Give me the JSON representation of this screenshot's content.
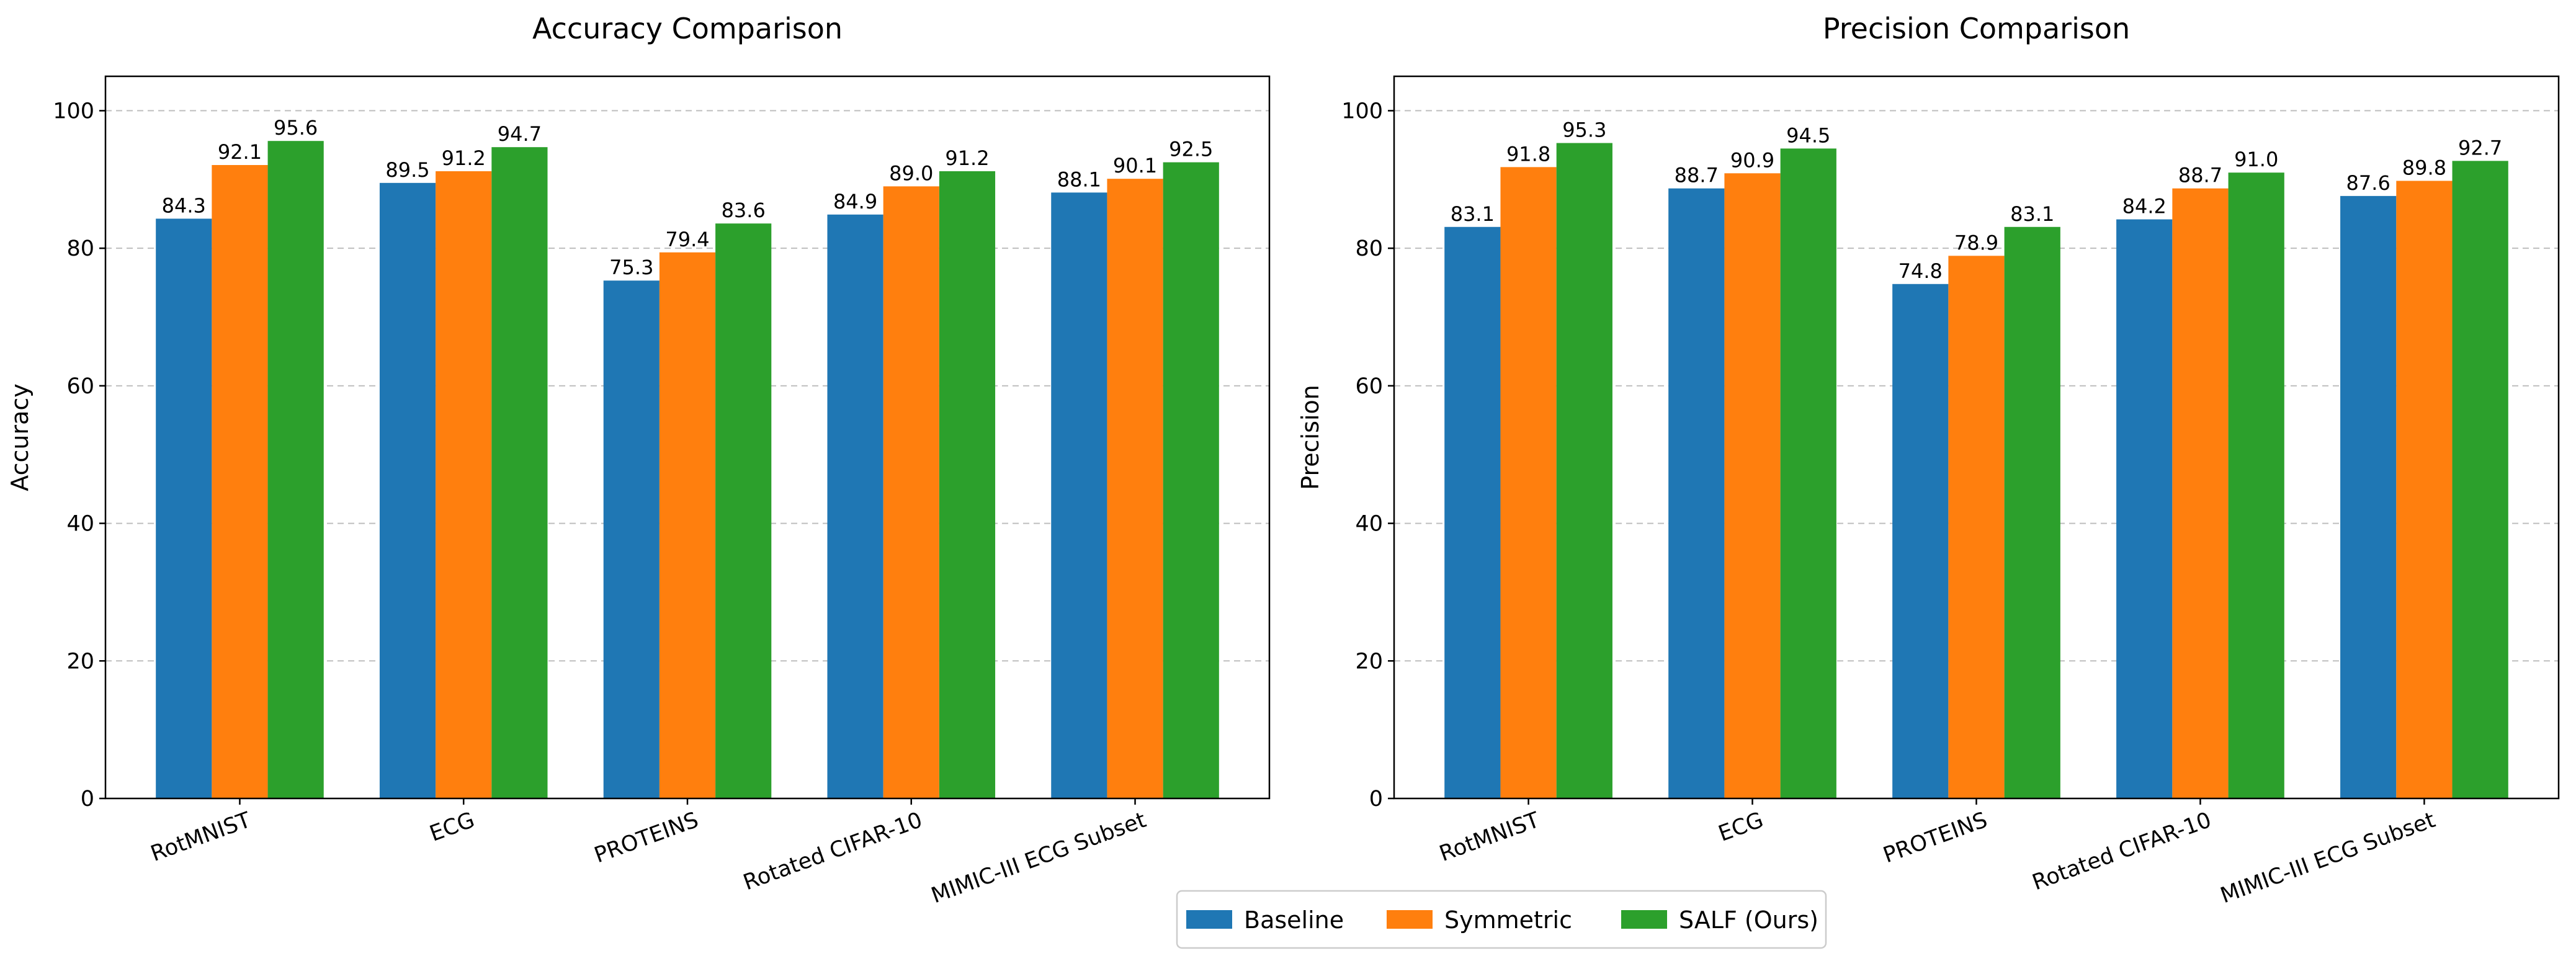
{
  "chart_data": [
    {
      "type": "bar",
      "title": "Accuracy Comparison",
      "xlabel": "",
      "ylabel": "Accuracy",
      "ylim": [
        0,
        105
      ],
      "yticks": [
        0,
        20,
        40,
        60,
        80,
        100
      ],
      "grid": "y-dashed",
      "categories": [
        "RotMNIST",
        "ECG",
        "PROTEINS",
        "Rotated CIFAR-10",
        "MIMIC-III ECG Subset"
      ],
      "series": [
        {
          "name": "Baseline",
          "color": "#1f77b4",
          "values": [
            84.3,
            89.5,
            75.3,
            84.9,
            88.1
          ]
        },
        {
          "name": "Symmetric",
          "color": "#ff7f0e",
          "values": [
            92.1,
            91.2,
            79.4,
            89.0,
            90.1
          ]
        },
        {
          "name": "SALF (Ours)",
          "color": "#2ca02c",
          "values": [
            95.6,
            94.7,
            83.6,
            91.2,
            92.5
          ]
        }
      ]
    },
    {
      "type": "bar",
      "title": "Precision Comparison",
      "xlabel": "",
      "ylabel": "Precision",
      "ylim": [
        0,
        105
      ],
      "yticks": [
        0,
        20,
        40,
        60,
        80,
        100
      ],
      "grid": "y-dashed",
      "categories": [
        "RotMNIST",
        "ECG",
        "PROTEINS",
        "Rotated CIFAR-10",
        "MIMIC-III ECG Subset"
      ],
      "series": [
        {
          "name": "Baseline",
          "color": "#1f77b4",
          "values": [
            83.1,
            88.7,
            74.8,
            84.2,
            87.6
          ]
        },
        {
          "name": "Symmetric",
          "color": "#ff7f0e",
          "values": [
            91.8,
            90.9,
            78.9,
            88.7,
            89.8
          ]
        },
        {
          "name": "SALF (Ours)",
          "color": "#2ca02c",
          "values": [
            95.3,
            94.5,
            83.1,
            91.0,
            92.7
          ]
        }
      ]
    }
  ],
  "legend": {
    "position": "bottom-center",
    "entries": [
      {
        "label": "Baseline",
        "color": "#1f77b4"
      },
      {
        "label": "Symmetric",
        "color": "#ff7f0e"
      },
      {
        "label": "SALF (Ours)",
        "color": "#2ca02c"
      }
    ]
  }
}
